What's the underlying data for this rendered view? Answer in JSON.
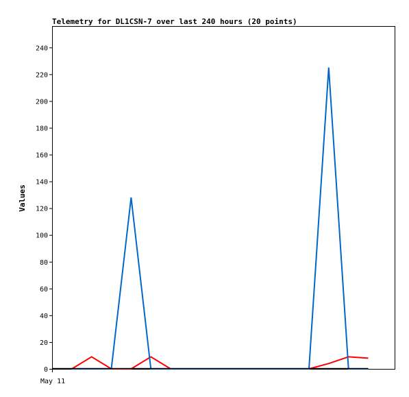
{
  "chart_data": {
    "type": "line",
    "title": "Telemetry for DL1CSN-7 over last 240 hours (20 points)",
    "xlabel": "",
    "ylabel": "Values",
    "ylim": [
      0,
      256
    ],
    "yticks": [
      0,
      20,
      40,
      60,
      80,
      100,
      120,
      140,
      160,
      180,
      200,
      220,
      240
    ],
    "xlim": [
      0,
      26
    ],
    "xtick_labels": [
      {
        "x": 0,
        "label": "May 11"
      }
    ],
    "grid": false,
    "legend": "none",
    "series": [
      {
        "color": "#ff0000",
        "points": [
          [
            1.5,
            0
          ],
          [
            3.0,
            9
          ],
          [
            4.5,
            0
          ],
          [
            6.0,
            0
          ],
          [
            7.5,
            9
          ],
          [
            9.0,
            0
          ],
          [
            18.0,
            0
          ],
          [
            19.5,
            0
          ],
          [
            21.0,
            4
          ],
          [
            22.5,
            9
          ],
          [
            24.0,
            8
          ]
        ]
      },
      {
        "color": "#0066cc",
        "points": [
          [
            1.5,
            0
          ],
          [
            4.5,
            0
          ],
          [
            6.0,
            128
          ],
          [
            7.5,
            0
          ],
          [
            18.0,
            0
          ],
          [
            19.5,
            0
          ],
          [
            21.0,
            225
          ],
          [
            22.5,
            0
          ],
          [
            24.0,
            0
          ]
        ]
      }
    ]
  }
}
